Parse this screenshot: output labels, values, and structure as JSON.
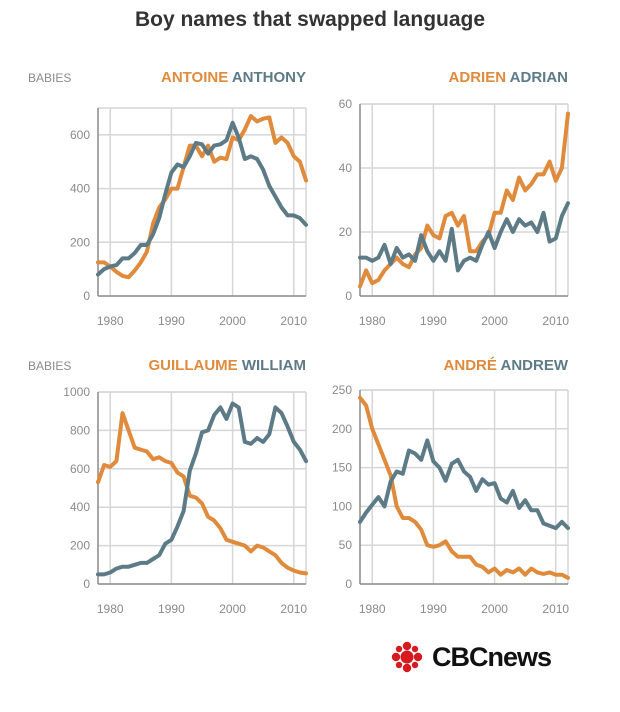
{
  "title": "Boy names that swapped language",
  "colors": {
    "french": "#e08a3c",
    "english": "#5d7b87",
    "grid": "#d6d6d6",
    "axis": "#8a8a8a"
  },
  "logo": {
    "text": "CBCnews",
    "mark": "cbc-gem"
  },
  "chart_data": [
    {
      "type": "line",
      "ylabel": "BABIES",
      "xticks": [
        1980,
        1990,
        2000,
        2010
      ],
      "xlim": [
        1978,
        2012
      ],
      "ylim": [
        0,
        700
      ],
      "yticks": [
        0,
        200,
        400,
        600
      ],
      "series": [
        {
          "name": "ANTOINE",
          "color": "#e08a3c",
          "x": [
            1978,
            1979,
            1980,
            1981,
            1982,
            1983,
            1984,
            1985,
            1986,
            1987,
            1988,
            1989,
            1990,
            1991,
            1992,
            1993,
            1994,
            1995,
            1996,
            1997,
            1998,
            1999,
            2000,
            2001,
            2002,
            2003,
            2004,
            2005,
            2006,
            2007,
            2008,
            2009,
            2010,
            2011,
            2012
          ],
          "values": [
            125,
            125,
            110,
            90,
            75,
            70,
            95,
            125,
            165,
            270,
            330,
            360,
            400,
            400,
            480,
            560,
            560,
            520,
            560,
            500,
            515,
            510,
            590,
            580,
            620,
            670,
            650,
            660,
            665,
            570,
            590,
            570,
            520,
            500,
            430
          ]
        },
        {
          "name": "ANTHONY",
          "color": "#5d7b87",
          "x": [
            1978,
            1979,
            1980,
            1981,
            1982,
            1983,
            1984,
            1985,
            1986,
            1987,
            1988,
            1989,
            1990,
            1991,
            1992,
            1993,
            1994,
            1995,
            1996,
            1997,
            1998,
            1999,
            2000,
            2001,
            2002,
            2003,
            2004,
            2005,
            2006,
            2007,
            2008,
            2009,
            2010,
            2011,
            2012
          ],
          "values": [
            80,
            100,
            110,
            115,
            140,
            140,
            160,
            190,
            190,
            230,
            290,
            380,
            460,
            490,
            480,
            520,
            570,
            565,
            530,
            560,
            565,
            580,
            645,
            590,
            510,
            520,
            510,
            470,
            410,
            370,
            330,
            300,
            300,
            290,
            265
          ]
        }
      ]
    },
    {
      "type": "line",
      "ylabel": "",
      "xticks": [
        1980,
        1990,
        2000,
        2010
      ],
      "xlim": [
        1978,
        2012
      ],
      "ylim": [
        0,
        60
      ],
      "yticks": [
        0,
        20,
        40,
        60
      ],
      "series": [
        {
          "name": "ADRIEN",
          "color": "#e08a3c",
          "x": [
            1978,
            1979,
            1980,
            1981,
            1982,
            1983,
            1984,
            1985,
            1986,
            1987,
            1988,
            1989,
            1990,
            1991,
            1992,
            1993,
            1994,
            1995,
            1996,
            1997,
            1998,
            1999,
            2000,
            2001,
            2002,
            2003,
            2004,
            2005,
            2006,
            2007,
            2008,
            2009,
            2010,
            2011,
            2012
          ],
          "values": [
            3,
            8,
            4,
            5,
            8,
            10,
            12,
            10,
            9,
            13,
            15,
            22,
            19,
            18,
            25,
            26,
            22,
            25,
            14,
            14,
            17,
            19,
            26,
            26,
            33,
            30,
            37,
            33,
            35,
            38,
            38,
            42,
            36,
            40,
            57
          ]
        },
        {
          "name": "ADRIAN",
          "color": "#5d7b87",
          "x": [
            1978,
            1979,
            1980,
            1981,
            1982,
            1983,
            1984,
            1985,
            1986,
            1987,
            1988,
            1989,
            1990,
            1991,
            1992,
            1993,
            1994,
            1995,
            1996,
            1997,
            1998,
            1999,
            2000,
            2001,
            2002,
            2003,
            2004,
            2005,
            2006,
            2007,
            2008,
            2009,
            2010,
            2011,
            2012
          ],
          "values": [
            12,
            12,
            11,
            12,
            16,
            10,
            15,
            12,
            13,
            11,
            19,
            14,
            11,
            14,
            11,
            21,
            8,
            11,
            12,
            11,
            16,
            20,
            15,
            20,
            24,
            20,
            24,
            22,
            23,
            20,
            26,
            17,
            18,
            25,
            29
          ]
        }
      ]
    },
    {
      "type": "line",
      "ylabel": "BABIES",
      "xticks": [
        1980,
        1990,
        2000,
        2010
      ],
      "xlim": [
        1978,
        2012
      ],
      "ylim": [
        0,
        1000
      ],
      "yticks": [
        0,
        200,
        400,
        600,
        800,
        1000
      ],
      "series": [
        {
          "name": "GUILLAUME",
          "color": "#e08a3c",
          "x": [
            1978,
            1979,
            1980,
            1981,
            1982,
            1983,
            1984,
            1985,
            1986,
            1987,
            1988,
            1989,
            1990,
            1991,
            1992,
            1993,
            1994,
            1995,
            1996,
            1997,
            1998,
            1999,
            2000,
            2001,
            2002,
            2003,
            2004,
            2005,
            2006,
            2007,
            2008,
            2009,
            2010,
            2011,
            2012
          ],
          "values": [
            530,
            620,
            610,
            640,
            890,
            800,
            710,
            700,
            690,
            650,
            660,
            640,
            630,
            580,
            560,
            460,
            450,
            420,
            350,
            330,
            290,
            230,
            220,
            210,
            200,
            170,
            200,
            190,
            170,
            150,
            110,
            85,
            70,
            60,
            55
          ]
        },
        {
          "name": "WILLIAM",
          "color": "#5d7b87",
          "x": [
            1978,
            1979,
            1980,
            1981,
            1982,
            1983,
            1984,
            1985,
            1986,
            1987,
            1988,
            1989,
            1990,
            1991,
            1992,
            1993,
            1994,
            1995,
            1996,
            1997,
            1998,
            1999,
            2000,
            2001,
            2002,
            2003,
            2004,
            2005,
            2006,
            2007,
            2008,
            2009,
            2010,
            2011,
            2012
          ],
          "values": [
            50,
            50,
            60,
            80,
            90,
            90,
            100,
            110,
            110,
            130,
            150,
            210,
            230,
            300,
            380,
            590,
            680,
            790,
            800,
            880,
            920,
            860,
            940,
            920,
            740,
            730,
            760,
            740,
            780,
            920,
            890,
            820,
            740,
            700,
            640
          ]
        }
      ]
    },
    {
      "type": "line",
      "ylabel": "",
      "xticks": [
        1980,
        1990,
        2000,
        2010
      ],
      "xlim": [
        1978,
        2012
      ],
      "ylim": [
        0,
        250
      ],
      "yticks": [
        0,
        50,
        100,
        150,
        200,
        250
      ],
      "series": [
        {
          "name": "ANDRÉ",
          "color": "#e08a3c",
          "x": [
            1978,
            1979,
            1980,
            1981,
            1982,
            1983,
            1984,
            1985,
            1986,
            1987,
            1988,
            1989,
            1990,
            1991,
            1992,
            1993,
            1994,
            1995,
            1996,
            1997,
            1998,
            1999,
            2000,
            2001,
            2002,
            2003,
            2004,
            2005,
            2006,
            2007,
            2008,
            2009,
            2010,
            2011,
            2012
          ],
          "values": [
            240,
            230,
            200,
            180,
            160,
            140,
            100,
            85,
            85,
            80,
            70,
            50,
            48,
            50,
            55,
            42,
            35,
            35,
            35,
            25,
            22,
            15,
            20,
            12,
            18,
            15,
            20,
            12,
            20,
            15,
            13,
            15,
            12,
            12,
            8
          ]
        },
        {
          "name": "ANDREW",
          "color": "#5d7b87",
          "x": [
            1978,
            1979,
            1980,
            1981,
            1982,
            1983,
            1984,
            1985,
            1986,
            1987,
            1988,
            1989,
            1990,
            1991,
            1992,
            1993,
            1994,
            1995,
            1996,
            1997,
            1998,
            1999,
            2000,
            2001,
            2002,
            2003,
            2004,
            2005,
            2006,
            2007,
            2008,
            2009,
            2010,
            2011,
            2012
          ],
          "values": [
            80,
            92,
            102,
            112,
            100,
            132,
            145,
            142,
            172,
            168,
            160,
            185,
            158,
            150,
            133,
            155,
            160,
            145,
            138,
            120,
            135,
            128,
            130,
            110,
            105,
            120,
            98,
            108,
            95,
            95,
            78,
            75,
            72,
            80,
            72
          ]
        }
      ]
    }
  ]
}
